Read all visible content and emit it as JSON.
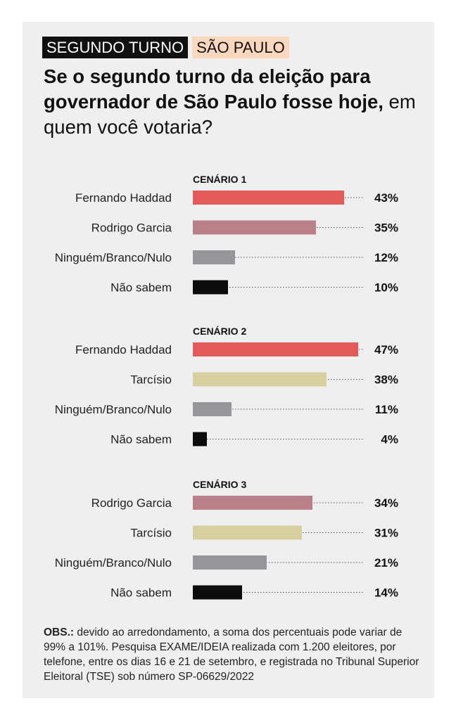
{
  "header": {
    "tag_turn": "SEGUNDO TURNO",
    "tag_state": "SÃO PAULO",
    "title_bold": "Se o segundo turno da eleição para governador de São Paulo fosse hoje,",
    "title_regular": " em quem você votaria?"
  },
  "footnote": {
    "label": "OBS.:",
    "text": " devido ao arredondamento, a soma dos percentuais pode variar de 99% a 101%. Pesquisa EXAME/IDEIA realizada com 1.200 eleitores, por telefone, entre os dias 16 e 21 de setembro, e registrada no Tribunal Superior Eleitoral (TSE) sob número SP-06629/2022"
  },
  "colors": {
    "Fernando Haddad": "#e25a5a",
    "Rodrigo Garcia": "#b98089",
    "Tarcísio": "#d8cfa0",
    "Ninguém/Branco/Nulo": "#96969a",
    "Não sabem": "#0c0c0c"
  },
  "chart_data": [
    {
      "type": "bar",
      "title": "CENÁRIO 1",
      "categories": [
        "Fernando Haddad",
        "Rodrigo Garcia",
        "Ninguém/Branco/Nulo",
        "Não sabem"
      ],
      "values": [
        43,
        35,
        12,
        10
      ],
      "value_labels": [
        "43%",
        "35%",
        "12%",
        "10%"
      ],
      "orientation": "horizontal",
      "xlim": [
        0,
        50
      ]
    },
    {
      "type": "bar",
      "title": "CENÁRIO 2",
      "categories": [
        "Fernando Haddad",
        "Tarcísio",
        "Ninguém/Branco/Nulo",
        "Não sabem"
      ],
      "values": [
        47,
        38,
        11,
        4
      ],
      "value_labels": [
        "47%",
        "38%",
        "11%",
        "4%"
      ],
      "orientation": "horizontal",
      "xlim": [
        0,
        50
      ]
    },
    {
      "type": "bar",
      "title": "CENÁRIO 3",
      "categories": [
        "Rodrigo Garcia",
        "Tarcísio",
        "Ninguém/Branco/Nulo",
        "Não sabem"
      ],
      "values": [
        34,
        31,
        21,
        14
      ],
      "value_labels": [
        "34%",
        "31%",
        "21%",
        "14%"
      ],
      "orientation": "horizontal",
      "xlim": [
        0,
        50
      ]
    }
  ]
}
